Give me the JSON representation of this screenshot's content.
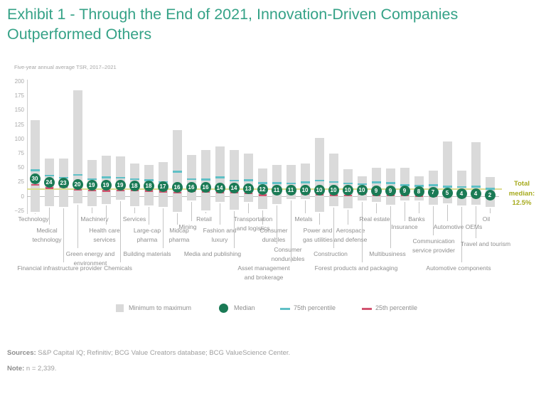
{
  "title": "Exhibit 1 - Through the End of 2021, Innovation-Driven Companies Outperformed Others",
  "subtitle": "Five-year annual average TSR, 2017–2021",
  "total_median": {
    "lines": [
      "Total",
      "median:",
      "12.5%"
    ],
    "value": 12.5
  },
  "legend": {
    "items": [
      {
        "swatch": "minmax-square",
        "label": "Minimum to maximum"
      },
      {
        "swatch": "median-circle",
        "label": "Median"
      },
      {
        "swatch": "p75-dash",
        "label": "75th percentile"
      },
      {
        "swatch": "p25-dash",
        "label": "25th percentile"
      }
    ]
  },
  "footer": {
    "sources_label": "Sources:",
    "sources_text": " S&P Capital IQ; Refinitiv; BCG Value Creators database; BCG ValueScience Center.",
    "note_label": "Note:",
    "note_text": " n = 2,339."
  },
  "colors": {
    "title_green": "#35a287",
    "bar_gray": "#dadada",
    "median_green": "#1a7a55",
    "p75_teal": "#5fc0c6",
    "p25_red": "#d25470",
    "total_median_line": "#dbdc90",
    "total_median_text": "#a6aa1c",
    "label_gray": "#8f8f8f"
  },
  "chart_data": {
    "type": "range_boxplot",
    "title": "Five-year annual average TSR, 2017–2021",
    "unit": "%",
    "ylim": [
      -25,
      200
    ],
    "yticks": [
      "200",
      "175",
      "150",
      "125",
      "100",
      "75",
      "50",
      "25",
      "0",
      "−25"
    ],
    "ytick_values": [
      200,
      175,
      150,
      125,
      100,
      75,
      50,
      25,
      0,
      -25
    ],
    "grid": false,
    "legend_position": "bottom",
    "total_median": 12.5,
    "industries": [
      {
        "label": "Technology",
        "lines": [
          "Technology"
        ],
        "median": 30,
        "p75": 45,
        "p25": 20,
        "min": -27,
        "max": 133,
        "row": "1",
        "dx": -2
      },
      {
        "label": "Medical technology",
        "lines": [
          "Medical",
          "technology"
        ],
        "median": 24,
        "p75": 36,
        "p25": 14,
        "min": -17,
        "max": 66,
        "row": "2",
        "dx": -3
      },
      {
        "label": "Financial infrastructure provider",
        "lines": [
          "Financial infrastructure provider"
        ],
        "median": 23,
        "p75": 32,
        "p25": 16,
        "min": -18,
        "max": 66,
        "row": "5",
        "dx": -5
      },
      {
        "label": "Green energy and environment",
        "lines": [
          "Green energy and",
          "environment"
        ],
        "median": 20,
        "p75": 37,
        "p25": 11,
        "min": -12,
        "max": 185,
        "row": "4",
        "dx": 18
      },
      {
        "label": "Machinery",
        "lines": [
          "Machinery"
        ],
        "median": 19,
        "p75": 30,
        "p25": 10,
        "min": -17,
        "max": 63,
        "row": "1",
        "dx": 4
      },
      {
        "label": "Health care services",
        "lines": [
          "Health care",
          "services"
        ],
        "median": 19,
        "p75": 33,
        "p25": 9,
        "min": -14,
        "max": 70,
        "row": "2",
        "dx": -2
      },
      {
        "label": "Chemicals",
        "lines": [
          "Chemicals"
        ],
        "median": 19,
        "p75": 32,
        "p25": 10,
        "min": -6,
        "max": 69,
        "row": "5",
        "dx": -3
      },
      {
        "label": "Services",
        "lines": [
          "Services"
        ],
        "median": 18,
        "p75": 30,
        "p25": 10,
        "min": -17,
        "max": 57,
        "row": "1",
        "dx": 0
      },
      {
        "label": "Large-cap pharma",
        "lines": [
          "Large-cap",
          "pharma"
        ],
        "median": 18,
        "p75": 28,
        "p25": 9,
        "min": -16,
        "max": 54,
        "row": "2",
        "dx": -2
      },
      {
        "label": "Building materials",
        "lines": [
          "Building materials"
        ],
        "median": 17,
        "p75": 25,
        "p25": 8,
        "min": -18,
        "max": 60,
        "row": "4",
        "dx": -22
      },
      {
        "label": "Midcap pharma",
        "lines": [
          "Midcap",
          "pharma"
        ],
        "median": 16,
        "p75": 43,
        "p25": 6,
        "min": -27,
        "max": 115,
        "row": "2",
        "dx": 3
      },
      {
        "label": "Mining",
        "lines": [
          "Mining"
        ],
        "median": 16,
        "p75": 30,
        "p25": 9,
        "min": -7,
        "max": 72,
        "row": "1b",
        "dx": -5
      },
      {
        "label": "Retail",
        "lines": [
          "Retail"
        ],
        "median": 16,
        "p75": 29,
        "p25": 8,
        "min": -25,
        "max": 81,
        "row": "1",
        "dx": -2
      },
      {
        "label": "Fashion and luxury",
        "lines": [
          "Fashion and",
          "luxury"
        ],
        "median": 14,
        "p75": 33,
        "p25": 7,
        "min": -10,
        "max": 87,
        "row": "2",
        "dx": 0
      },
      {
        "label": "Media and publishing",
        "lines": [
          "Media and publishing"
        ],
        "median": 14,
        "p75": 27,
        "p25": 6,
        "min": -23,
        "max": 81,
        "row": "4",
        "dx": -30
      },
      {
        "label": "Transportation and logistics",
        "lines": [
          "Transportation",
          "and logistics"
        ],
        "median": 13,
        "p75": 28,
        "p25": 5,
        "min": -10,
        "max": 74,
        "row": "1",
        "dx": 7
      },
      {
        "label": "Consumer durables",
        "lines": [
          "Consumer",
          "durables"
        ],
        "median": 12,
        "p75": 23,
        "p25": 2,
        "min": -22,
        "max": 48,
        "row": "2",
        "dx": 16
      },
      {
        "label": "Consumer nondurables",
        "lines": [
          "Consumer",
          "nondurables"
        ],
        "median": 11,
        "p75": 23,
        "p25": 6,
        "min": -14,
        "max": 55,
        "row": "3",
        "dx": 16
      },
      {
        "label": "Asset management and brokerage",
        "lines": [
          "Asset management",
          "and brokerage"
        ],
        "median": 11,
        "p75": 22,
        "p25": 5,
        "min": -5,
        "max": 55,
        "row": "5",
        "dx": -38
      },
      {
        "label": "Metals",
        "lines": [
          "Metals"
        ],
        "median": 10,
        "p75": 24,
        "p25": 4,
        "min": -5,
        "max": 57,
        "row": "1",
        "dx": -2
      },
      {
        "label": "Power and gas utilities",
        "lines": [
          "Power and",
          "gas utilities"
        ],
        "median": 10,
        "p75": 27,
        "p25": 3,
        "min": -27,
        "max": 101,
        "row": "2",
        "dx": -2
      },
      {
        "label": "Construction",
        "lines": [
          "Construction"
        ],
        "median": 10,
        "p75": 25,
        "p25": 2,
        "min": -17,
        "max": 74,
        "row": "4",
        "dx": -4
      },
      {
        "label": "Aerospace and defense",
        "lines": [
          "Aerospace",
          "and defense"
        ],
        "median": 10,
        "p75": 22,
        "p25": 1,
        "min": -21,
        "max": 47,
        "row": "2",
        "dx": 4
      },
      {
        "label": "Forest products and packaging",
        "lines": [
          "Forest products and packaging"
        ],
        "median": 10,
        "p75": 21,
        "p25": 4,
        "min": -8,
        "max": 35,
        "row": "5",
        "dx": -8
      },
      {
        "label": "Real estate",
        "lines": [
          "Real estate"
        ],
        "median": 9,
        "p75": 24,
        "p25": 1,
        "min": -10,
        "max": 49,
        "row": "1",
        "dx": -2
      },
      {
        "label": "Multibusiness",
        "lines": [
          "Multibusiness"
        ],
        "median": 9,
        "p75": 23,
        "p25": 2,
        "min": -15,
        "max": 48,
        "row": "4",
        "dx": -4
      },
      {
        "label": "Insurance",
        "lines": [
          "Insurance"
        ],
        "median": 9,
        "p75": 19,
        "p25": 2,
        "min": -8,
        "max": 49,
        "row": "1b",
        "dx": 0
      },
      {
        "label": "Banks",
        "lines": [
          "Banks"
        ],
        "median": 8,
        "p75": 18,
        "p25": 0,
        "min": -8,
        "max": 35,
        "row": "1",
        "dx": -3
      },
      {
        "label": "Communication service provider",
        "lines": [
          "Communication",
          "service provider"
        ],
        "median": 7,
        "p75": 19,
        "p25": 0,
        "min": -15,
        "max": 44,
        "row": "2b",
        "dx": 1
      },
      {
        "label": "Automotive OEMs",
        "lines": [
          "Automotive OEMs"
        ],
        "median": 5,
        "p75": 17,
        "p25": 0,
        "min": -12,
        "max": 95,
        "row": "1b",
        "dx": 15
      },
      {
        "label": "Automotive components",
        "lines": [
          "Automotive components"
        ],
        "median": 4,
        "p75": 16,
        "p25": -1,
        "min": -16,
        "max": 44,
        "row": "5",
        "dx": -4
      },
      {
        "label": "Travel and tourism",
        "lines": [
          "Travel and tourism"
        ],
        "median": 4,
        "p75": 17,
        "p25": -1,
        "min": -15,
        "max": 94,
        "row": "2c",
        "dx": 14
      },
      {
        "label": "Oil",
        "lines": [
          "Oil"
        ],
        "median": 2,
        "p75": 13,
        "p25": -4,
        "min": -19,
        "max": 34,
        "row": "1",
        "dx": -5
      }
    ]
  }
}
